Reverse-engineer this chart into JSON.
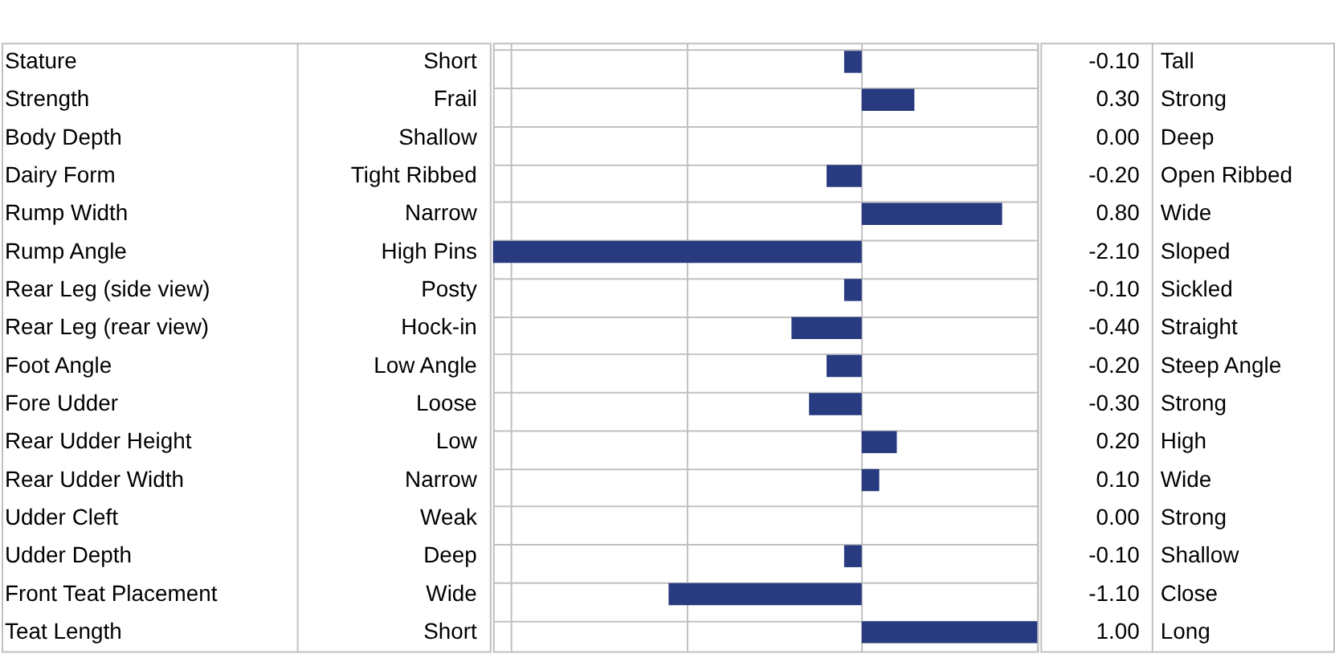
{
  "chart_data": {
    "type": "bar",
    "orientation": "horizontal",
    "color": "#283a80",
    "grid": true,
    "tick_labels": false,
    "categories": [
      "Stature",
      "Strength",
      "Body Depth",
      "Dairy Form",
      "Rump Width",
      "Rump Angle",
      "Rear Leg (side view)",
      "Rear Leg (rear view)",
      "Foot Angle",
      "Fore Udder",
      "Rear Udder Height",
      "Rear Udder Width",
      "Udder Cleft",
      "Udder Depth",
      "Front Teat Placement",
      "Teat Length"
    ],
    "values": [
      -0.1,
      0.3,
      0.0,
      -0.2,
      0.8,
      -2.1,
      -0.1,
      -0.4,
      -0.2,
      -0.3,
      0.2,
      0.1,
      0.0,
      -0.1,
      -1.1,
      1.0
    ],
    "value_labels": [
      "-0.10",
      "0.30",
      "0.00",
      "-0.20",
      "0.80",
      "-2.10",
      "-0.10",
      "-0.40",
      "-0.20",
      "-0.30",
      "0.20",
      "0.10",
      "0.00",
      "-0.10",
      "-1.10",
      "1.00"
    ],
    "annotations": [
      "Short",
      "Frail",
      "Shallow",
      "Tight Ribbed",
      "Narrow",
      "High Pins",
      "Posty",
      "Hock-in",
      "Low Angle",
      "Loose",
      "Low",
      "Narrow",
      "Weak",
      "Deep",
      "Wide",
      "Short",
      "Tall",
      "Strong",
      "Deep",
      "Open Ribbed",
      "Wide",
      "Sloped",
      "Sickled",
      "Straight",
      "Steep Angle",
      "Strong",
      "High",
      "Wide",
      "Strong",
      "Shallow",
      "Close",
      "Long"
    ]
  }
}
